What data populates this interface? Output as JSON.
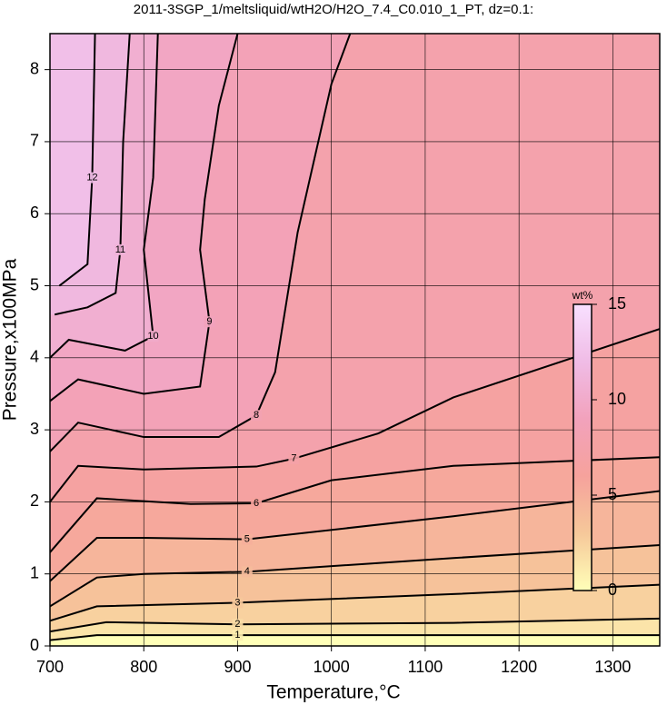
{
  "chart_data": {
    "type": "contour",
    "title": "2011-3SGP_1/meltsliquid/wtH2O/H2O_7.4_C0.010_1_PT, dz=0.1:",
    "x_label": "Temperature,°C",
    "y_label": "Pressure,x100MPa",
    "xlim": [
      700,
      1350
    ],
    "ylim": [
      0,
      8.5
    ],
    "xticks": [
      700,
      800,
      900,
      1000,
      1100,
      1200,
      1300
    ],
    "yticks": [
      0,
      1,
      2,
      3,
      4,
      5,
      6,
      7,
      8
    ],
    "grid": true,
    "colorbar": {
      "label": "wt%",
      "lim": [
        0,
        15
      ],
      "ticks": [
        0,
        5,
        10,
        15
      ],
      "colors": [
        "#ffffb8",
        "#f6c89a",
        "#f6a29c",
        "#f2a2bc",
        "#f0bce6",
        "#f8e0ff"
      ]
    },
    "contours": [
      {
        "level": 1,
        "x": [
          700,
          750,
          900,
          1350
        ],
        "y": [
          0.08,
          0.15,
          0.15,
          0.15
        ]
      },
      {
        "level": 2,
        "x": [
          700,
          760,
          900,
          1130,
          1350
        ],
        "y": [
          0.2,
          0.33,
          0.3,
          0.32,
          0.38
        ]
      },
      {
        "level": 3,
        "x": [
          700,
          750,
          900,
          1130,
          1350
        ],
        "y": [
          0.35,
          0.55,
          0.6,
          0.72,
          0.85
        ]
      },
      {
        "level": 4,
        "x": [
          700,
          750,
          800,
          910,
          1130,
          1350
        ],
        "y": [
          0.55,
          0.95,
          1.0,
          1.03,
          1.22,
          1.4
        ]
      },
      {
        "level": 5,
        "x": [
          700,
          750,
          800,
          910,
          1130,
          1350
        ],
        "y": [
          0.9,
          1.5,
          1.5,
          1.48,
          1.8,
          2.15
        ]
      },
      {
        "level": 6,
        "x": [
          700,
          750,
          850,
          920,
          1000,
          1130,
          1350
        ],
        "y": [
          1.3,
          2.05,
          1.97,
          1.98,
          2.3,
          2.5,
          2.62
        ]
      },
      {
        "level": 7,
        "x": [
          700,
          730,
          800,
          920,
          960,
          1050,
          1130,
          1350
        ],
        "y": [
          2.0,
          2.5,
          2.45,
          2.49,
          2.6,
          2.95,
          3.45,
          4.4
        ]
      },
      {
        "level": 8,
        "x": [
          700,
          730,
          800,
          880,
          920,
          940,
          964,
          1000,
          1020
        ],
        "y": [
          2.7,
          3.1,
          2.9,
          2.9,
          3.2,
          3.8,
          5.74,
          7.8,
          8.5
        ]
      },
      {
        "level": 9,
        "x": [
          700,
          730,
          800,
          860,
          870,
          860,
          865,
          880,
          900
        ],
        "y": [
          3.4,
          3.7,
          3.5,
          3.6,
          4.5,
          5.5,
          6.2,
          7.5,
          8.5
        ]
      },
      {
        "level": 10,
        "x": [
          700,
          720,
          780,
          810,
          800,
          810,
          815
        ],
        "y": [
          4.0,
          4.25,
          4.1,
          4.3,
          5.5,
          6.5,
          8.5
        ]
      },
      {
        "level": 11,
        "x": [
          705,
          740,
          770,
          775,
          778,
          785
        ],
        "y": [
          4.6,
          4.7,
          4.9,
          5.5,
          7.0,
          8.5
        ]
      },
      {
        "level": 12,
        "x": [
          710,
          740,
          745,
          748
        ],
        "y": [
          5.0,
          5.3,
          6.5,
          8.5
        ]
      }
    ]
  }
}
